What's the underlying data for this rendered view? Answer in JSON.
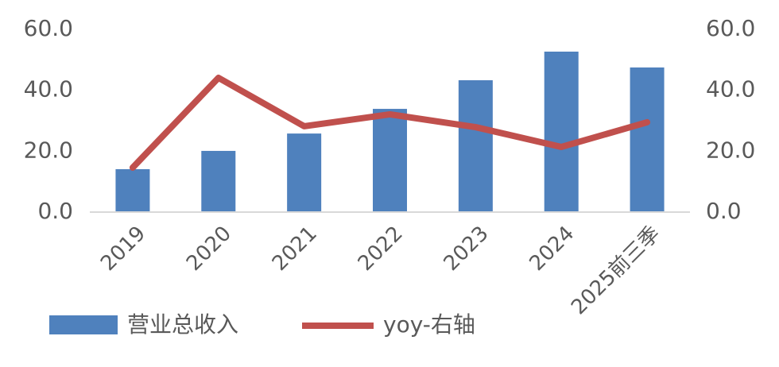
{
  "chart_data": {
    "type": "bar",
    "categories": [
      "2019",
      "2020",
      "2021",
      "2022",
      "2023",
      "2024",
      "2025前三季"
    ],
    "series": [
      {
        "name": "营业总收入",
        "type": "bar",
        "color": "#4f81bd",
        "values": [
          14.1,
          20.1,
          25.8,
          33.9,
          43.3,
          52.7,
          47.5
        ]
      },
      {
        "name": "yoy-右轴",
        "type": "line",
        "axis": "y2",
        "color": "#c0504d",
        "values": [
          14.6,
          44.1,
          28.2,
          32.1,
          27.9,
          21.4,
          29.5
        ]
      }
    ],
    "ylim": [
      0,
      60
    ],
    "yticks": [
      {
        "value": 0,
        "label": "0.0"
      },
      {
        "value": 20,
        "label": "20.0"
      },
      {
        "value": 40,
        "label": "40.0"
      },
      {
        "value": 60,
        "label": "60.0"
      }
    ],
    "y2lim": [
      0,
      60
    ],
    "y2ticks": [
      {
        "value": 0,
        "label": "0.0"
      },
      {
        "value": 20,
        "label": "20.0"
      },
      {
        "value": 40,
        "label": "40.0"
      },
      {
        "value": 60,
        "label": "60.0"
      }
    ],
    "grid": false,
    "legend": "bottom"
  }
}
